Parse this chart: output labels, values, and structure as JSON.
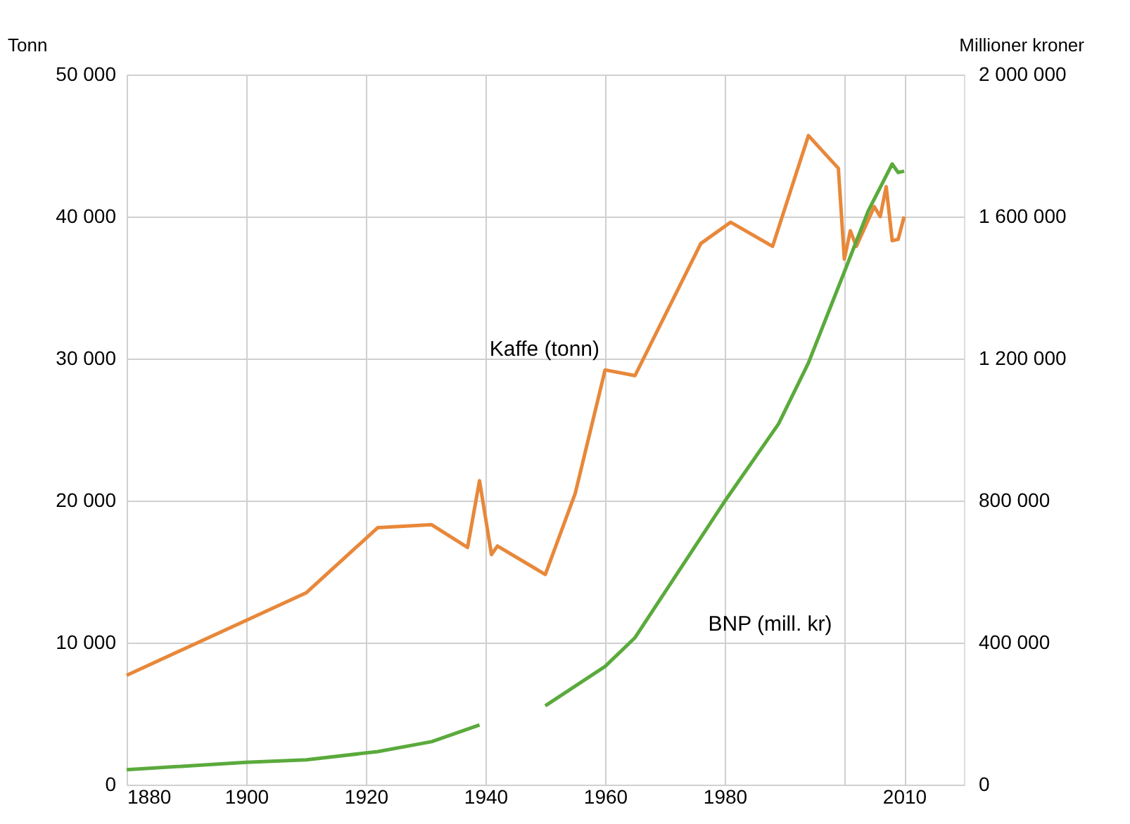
{
  "chart_data": {
    "type": "line",
    "ylabel": "Tonn",
    "y2label": "Millioner kroner",
    "xlim": [
      1880,
      2020
    ],
    "xticks": [
      1880,
      1900,
      1920,
      1940,
      1960,
      1980,
      {
        "value": 2000,
        "label": null
      },
      2010
    ],
    "ylim": [
      0,
      50000
    ],
    "yticks": [
      0,
      {
        "value": 10000,
        "label": "10 000"
      },
      {
        "value": 20000,
        "label": "20 000"
      },
      {
        "value": 30000,
        "label": "30 000"
      },
      {
        "value": 40000,
        "label": "40 000"
      },
      {
        "value": 50000,
        "label": "50 000"
      }
    ],
    "y2lim": [
      0,
      2000000
    ],
    "y2ticks": [
      0,
      {
        "value": 400000,
        "label": "400 000"
      },
      {
        "value": 800000,
        "label": "800 000"
      },
      {
        "value": 1200000,
        "label": "1 200 000"
      },
      {
        "value": 1600000,
        "label": "1 600 000"
      },
      {
        "value": 2000000,
        "label": "2 000 000"
      }
    ],
    "grid": true,
    "legend": false,
    "marker": "none",
    "line_style": "solid",
    "series": [
      {
        "name": "Kaffe (tonn)",
        "color": "#e8883a",
        "x": [
          1880,
          1910,
          1922,
          1931,
          1937,
          1939,
          1941,
          1942,
          1950,
          1955,
          1960,
          1965,
          1976,
          1981,
          1988,
          1994,
          1999,
          2000,
          2001,
          2002,
          2005,
          2006,
          2007,
          2008,
          2009,
          2010
        ],
        "values": [
          7700,
          13500,
          18100,
          18300,
          16700,
          21400,
          16200,
          16800,
          14800,
          20500,
          29200,
          28800,
          38100,
          39600,
          37900,
          45700,
          43400,
          37000,
          39000,
          37900,
          40700,
          40000,
          42100,
          38300,
          38400,
          40000
        ]
      },
      {
        "name": "BNP (mill. kr)",
        "color": "#5aaa3c",
        "axis": "y2",
        "x": [
          1880,
          1900,
          1910,
          1922,
          1931,
          1939,
          1945,
          1950,
          1960,
          1965,
          1980,
          1989,
          1994,
          2000,
          2004,
          2008,
          2009,
          2010
        ],
        "values": [
          42000,
          63000,
          70000,
          93000,
          121000,
          168000,
          null,
          222000,
          333000,
          414000,
          798000,
          1016000,
          1188000,
          1444000,
          1616000,
          1748000,
          1724000,
          1728000
        ]
      }
    ]
  }
}
